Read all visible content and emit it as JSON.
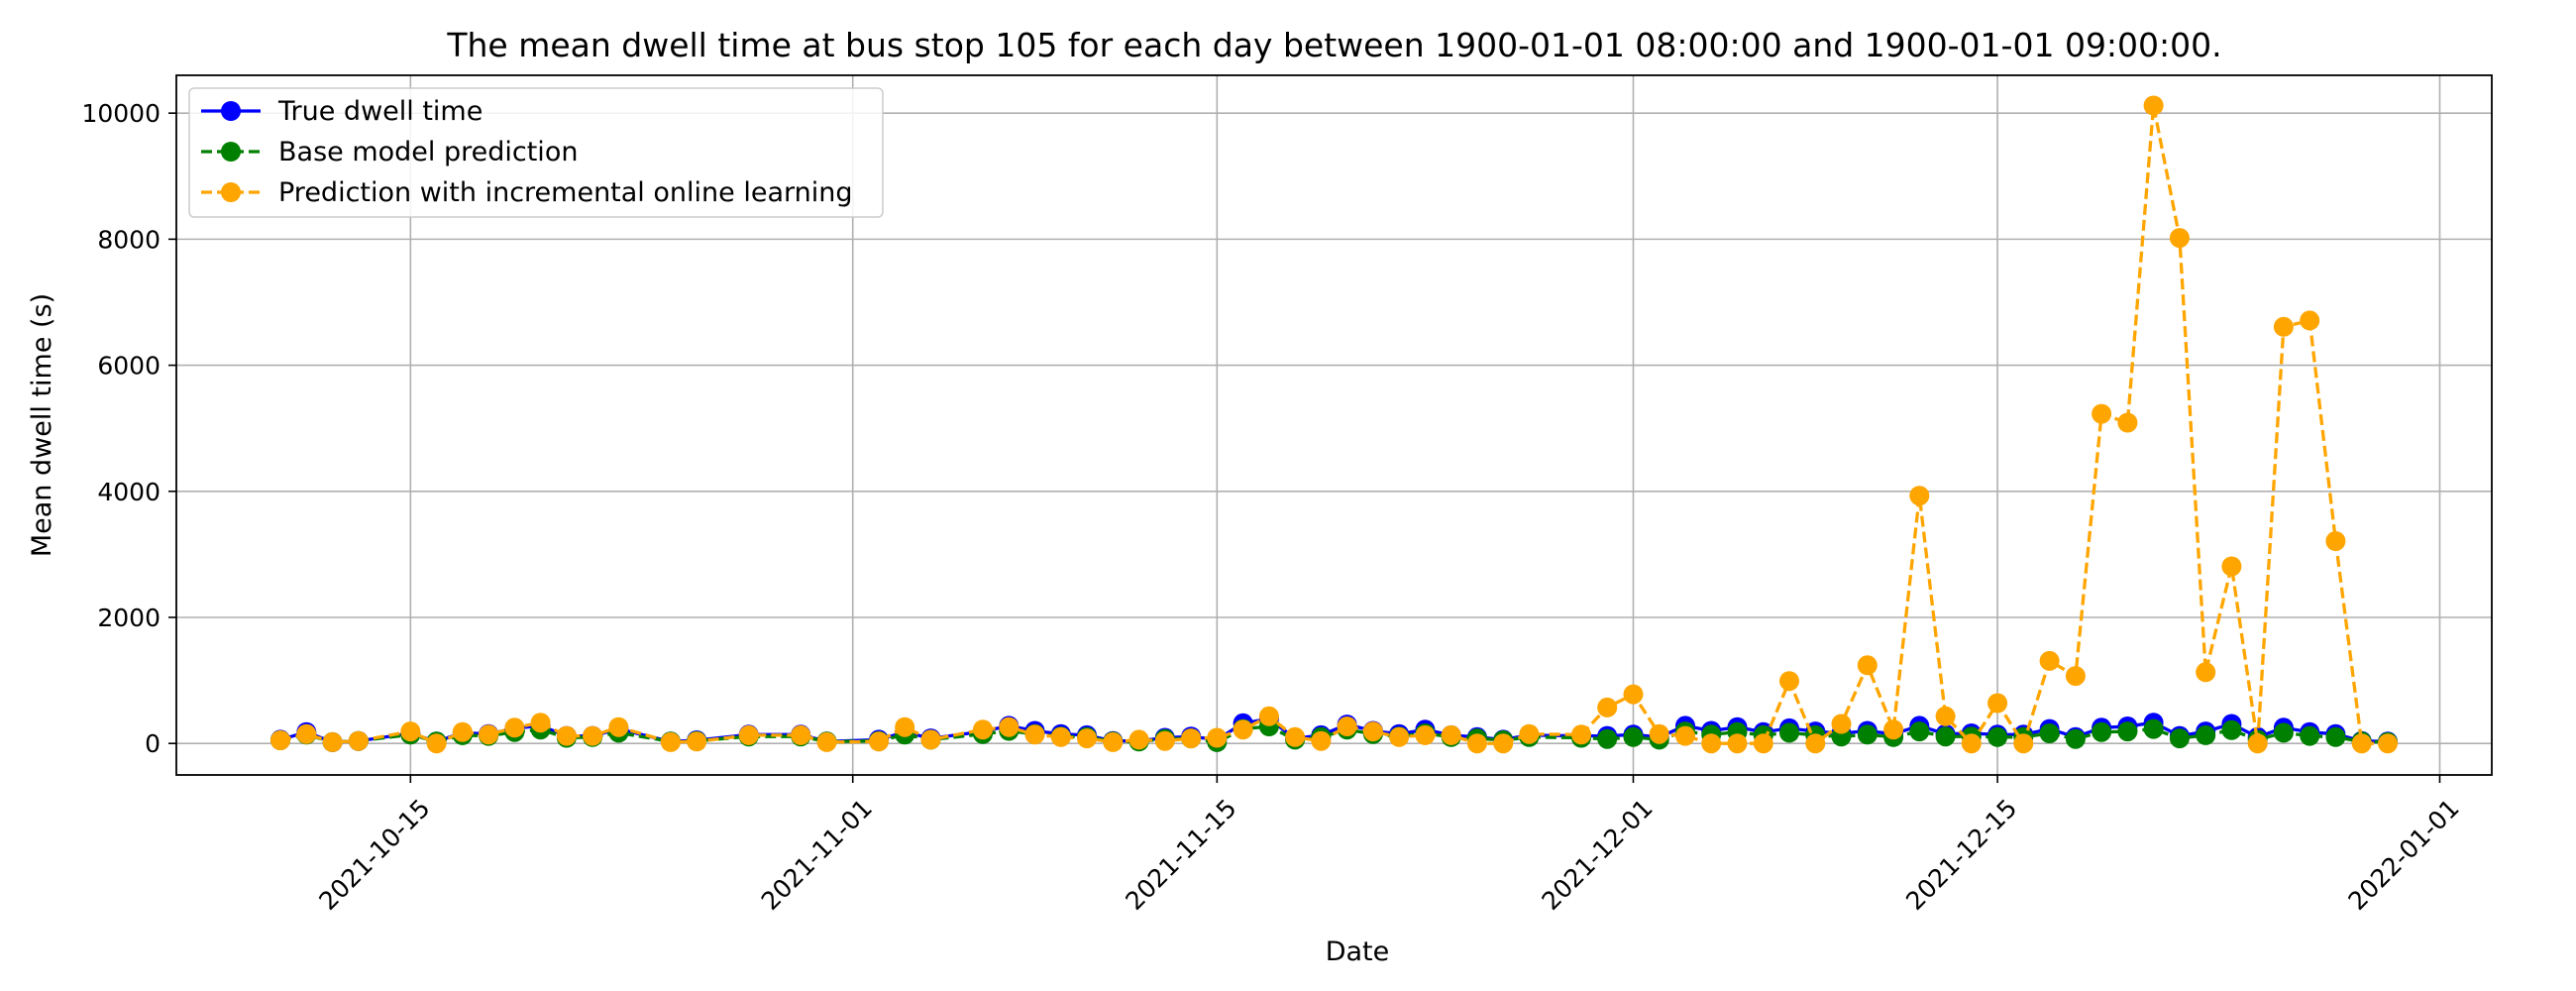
{
  "chart_data": {
    "type": "line",
    "title": "The mean dwell time at bus stop 105 for each day between 1900-01-01 08:00:00 and 1900-01-01 09:00:00.",
    "xlabel": "Date",
    "ylabel": "Mean dwell time (s)",
    "x_ticks": [
      "2021-10-15",
      "2021-11-01",
      "2021-11-15",
      "2021-12-01",
      "2021-12-15",
      "2022-01-01"
    ],
    "y_ticks": [
      0,
      2000,
      4000,
      6000,
      8000,
      10000
    ],
    "xlim": [
      "2021-10-06",
      "2022-01-03"
    ],
    "ylim": [
      -500,
      10600
    ],
    "grid": true,
    "legend_position": "upper-left",
    "series": [
      {
        "name": "True dwell time",
        "color": "#0000ff",
        "linestyle": "solid",
        "points": [
          [
            "2021-10-10",
            60
          ],
          [
            "2021-10-11",
            180
          ],
          [
            "2021-10-12",
            20
          ],
          [
            "2021-10-13",
            40
          ],
          [
            "2021-10-15",
            160
          ],
          [
            "2021-10-16",
            30
          ],
          [
            "2021-10-17",
            170
          ],
          [
            "2021-10-18",
            150
          ],
          [
            "2021-10-19",
            240
          ],
          [
            "2021-10-20",
            280
          ],
          [
            "2021-10-21",
            120
          ],
          [
            "2021-10-22",
            120
          ],
          [
            "2021-10-23",
            230
          ],
          [
            "2021-10-25",
            30
          ],
          [
            "2021-10-26",
            50
          ],
          [
            "2021-10-28",
            140
          ],
          [
            "2021-10-30",
            140
          ],
          [
            "2021-10-31",
            30
          ],
          [
            "2021-11-02",
            60
          ],
          [
            "2021-11-03",
            180
          ],
          [
            "2021-11-04",
            80
          ],
          [
            "2021-11-06",
            190
          ],
          [
            "2021-11-07",
            280
          ],
          [
            "2021-11-08",
            200
          ],
          [
            "2021-11-09",
            150
          ],
          [
            "2021-11-10",
            130
          ],
          [
            "2021-11-11",
            40
          ],
          [
            "2021-11-12",
            40
          ],
          [
            "2021-11-13",
            90
          ],
          [
            "2021-11-14",
            110
          ],
          [
            "2021-11-15",
            60
          ],
          [
            "2021-11-16",
            320
          ],
          [
            "2021-11-17",
            390
          ],
          [
            "2021-11-18",
            80
          ],
          [
            "2021-11-19",
            130
          ],
          [
            "2021-11-20",
            300
          ],
          [
            "2021-11-21",
            200
          ],
          [
            "2021-11-22",
            150
          ],
          [
            "2021-11-23",
            220
          ],
          [
            "2021-11-24",
            130
          ],
          [
            "2021-11-25",
            100
          ],
          [
            "2021-11-26",
            60
          ],
          [
            "2021-11-27",
            130
          ],
          [
            "2021-11-29",
            120
          ],
          [
            "2021-11-30",
            120
          ],
          [
            "2021-12-01",
            140
          ],
          [
            "2021-12-02",
            100
          ],
          [
            "2021-12-03",
            280
          ],
          [
            "2021-12-04",
            200
          ],
          [
            "2021-12-05",
            260
          ],
          [
            "2021-12-06",
            180
          ],
          [
            "2021-12-07",
            240
          ],
          [
            "2021-12-08",
            190
          ],
          [
            "2021-12-09",
            160
          ],
          [
            "2021-12-10",
            200
          ],
          [
            "2021-12-11",
            150
          ],
          [
            "2021-12-12",
            280
          ],
          [
            "2021-12-13",
            150
          ],
          [
            "2021-12-14",
            160
          ],
          [
            "2021-12-15",
            140
          ],
          [
            "2021-12-16",
            140
          ],
          [
            "2021-12-17",
            230
          ],
          [
            "2021-12-18",
            100
          ],
          [
            "2021-12-19",
            250
          ],
          [
            "2021-12-20",
            270
          ],
          [
            "2021-12-21",
            330
          ],
          [
            "2021-12-22",
            120
          ],
          [
            "2021-12-23",
            190
          ],
          [
            "2021-12-24",
            310
          ],
          [
            "2021-12-25",
            100
          ],
          [
            "2021-12-26",
            250
          ],
          [
            "2021-12-27",
            180
          ],
          [
            "2021-12-28",
            150
          ],
          [
            "2021-12-29",
            40
          ],
          [
            "2021-12-30",
            30
          ]
        ]
      },
      {
        "name": "Base model prediction",
        "color": "#008000",
        "linestyle": "dashed",
        "points": [
          [
            "2021-10-10",
            50
          ],
          [
            "2021-10-11",
            140
          ],
          [
            "2021-10-12",
            20
          ],
          [
            "2021-10-13",
            40
          ],
          [
            "2021-10-15",
            140
          ],
          [
            "2021-10-16",
            30
          ],
          [
            "2021-10-17",
            130
          ],
          [
            "2021-10-18",
            120
          ],
          [
            "2021-10-19",
            180
          ],
          [
            "2021-10-20",
            220
          ],
          [
            "2021-10-21",
            90
          ],
          [
            "2021-10-22",
            100
          ],
          [
            "2021-10-23",
            170
          ],
          [
            "2021-10-25",
            30
          ],
          [
            "2021-10-26",
            40
          ],
          [
            "2021-10-28",
            110
          ],
          [
            "2021-10-30",
            110
          ],
          [
            "2021-10-31",
            30
          ],
          [
            "2021-11-02",
            40
          ],
          [
            "2021-11-03",
            140
          ],
          [
            "2021-11-04",
            60
          ],
          [
            "2021-11-06",
            150
          ],
          [
            "2021-11-07",
            200
          ],
          [
            "2021-11-08",
            150
          ],
          [
            "2021-11-09",
            110
          ],
          [
            "2021-11-10",
            100
          ],
          [
            "2021-11-11",
            30
          ],
          [
            "2021-11-12",
            30
          ],
          [
            "2021-11-13",
            70
          ],
          [
            "2021-11-14",
            80
          ],
          [
            "2021-11-15",
            20
          ],
          [
            "2021-11-16",
            230
          ],
          [
            "2021-11-17",
            270
          ],
          [
            "2021-11-18",
            60
          ],
          [
            "2021-11-19",
            100
          ],
          [
            "2021-11-20",
            220
          ],
          [
            "2021-11-21",
            150
          ],
          [
            "2021-11-22",
            110
          ],
          [
            "2021-11-23",
            160
          ],
          [
            "2021-11-24",
            100
          ],
          [
            "2021-11-25",
            80
          ],
          [
            "2021-11-26",
            50
          ],
          [
            "2021-11-27",
            100
          ],
          [
            "2021-11-29",
            90
          ],
          [
            "2021-11-30",
            70
          ],
          [
            "2021-12-01",
            100
          ],
          [
            "2021-12-02",
            60
          ],
          [
            "2021-12-03",
            190
          ],
          [
            "2021-12-04",
            140
          ],
          [
            "2021-12-05",
            180
          ],
          [
            "2021-12-06",
            130
          ],
          [
            "2021-12-07",
            170
          ],
          [
            "2021-12-08",
            130
          ],
          [
            "2021-12-09",
            110
          ],
          [
            "2021-12-10",
            140
          ],
          [
            "2021-12-11",
            100
          ],
          [
            "2021-12-12",
            190
          ],
          [
            "2021-12-13",
            110
          ],
          [
            "2021-12-14",
            110
          ],
          [
            "2021-12-15",
            100
          ],
          [
            "2021-12-16",
            100
          ],
          [
            "2021-12-17",
            160
          ],
          [
            "2021-12-18",
            70
          ],
          [
            "2021-12-19",
            180
          ],
          [
            "2021-12-20",
            190
          ],
          [
            "2021-12-21",
            230
          ],
          [
            "2021-12-22",
            80
          ],
          [
            "2021-12-23",
            130
          ],
          [
            "2021-12-24",
            210
          ],
          [
            "2021-12-25",
            60
          ],
          [
            "2021-12-26",
            170
          ],
          [
            "2021-12-27",
            120
          ],
          [
            "2021-12-28",
            100
          ],
          [
            "2021-12-29",
            30
          ],
          [
            "2021-12-30",
            20
          ]
        ]
      },
      {
        "name": "Prediction with incremental online learning",
        "color": "#ffa500",
        "linestyle": "dashed",
        "points": [
          [
            "2021-10-10",
            50
          ],
          [
            "2021-10-11",
            150
          ],
          [
            "2021-10-12",
            20
          ],
          [
            "2021-10-13",
            40
          ],
          [
            "2021-10-15",
            190
          ],
          [
            "2021-10-16",
            0
          ],
          [
            "2021-10-17",
            180
          ],
          [
            "2021-10-18",
            140
          ],
          [
            "2021-10-19",
            250
          ],
          [
            "2021-10-20",
            330
          ],
          [
            "2021-10-21",
            120
          ],
          [
            "2021-10-22",
            120
          ],
          [
            "2021-10-23",
            260
          ],
          [
            "2021-10-25",
            20
          ],
          [
            "2021-10-26",
            30
          ],
          [
            "2021-10-28",
            130
          ],
          [
            "2021-10-30",
            130
          ],
          [
            "2021-10-31",
            20
          ],
          [
            "2021-11-02",
            30
          ],
          [
            "2021-11-03",
            260
          ],
          [
            "2021-11-04",
            60
          ],
          [
            "2021-11-06",
            220
          ],
          [
            "2021-11-07",
            260
          ],
          [
            "2021-11-08",
            140
          ],
          [
            "2021-11-09",
            100
          ],
          [
            "2021-11-10",
            80
          ],
          [
            "2021-11-11",
            20
          ],
          [
            "2021-11-12",
            60
          ],
          [
            "2021-11-13",
            40
          ],
          [
            "2021-11-14",
            80
          ],
          [
            "2021-11-15",
            90
          ],
          [
            "2021-11-16",
            220
          ],
          [
            "2021-11-17",
            430
          ],
          [
            "2021-11-18",
            100
          ],
          [
            "2021-11-19",
            40
          ],
          [
            "2021-11-20",
            270
          ],
          [
            "2021-11-21",
            190
          ],
          [
            "2021-11-22",
            100
          ],
          [
            "2021-11-23",
            130
          ],
          [
            "2021-11-24",
            130
          ],
          [
            "2021-11-25",
            0
          ],
          [
            "2021-11-26",
            0
          ],
          [
            "2021-11-27",
            150
          ],
          [
            "2021-11-29",
            140
          ],
          [
            "2021-11-30",
            570
          ],
          [
            "2021-12-01",
            780
          ],
          [
            "2021-12-02",
            150
          ],
          [
            "2021-12-03",
            120
          ],
          [
            "2021-12-04",
            0
          ],
          [
            "2021-12-05",
            0
          ],
          [
            "2021-12-06",
            0
          ],
          [
            "2021-12-07",
            990
          ],
          [
            "2021-12-08",
            0
          ],
          [
            "2021-12-09",
            310
          ],
          [
            "2021-12-10",
            1240
          ],
          [
            "2021-12-11",
            220
          ],
          [
            "2021-12-12",
            3930
          ],
          [
            "2021-12-13",
            430
          ],
          [
            "2021-12-14",
            0
          ],
          [
            "2021-12-15",
            640
          ],
          [
            "2021-12-16",
            0
          ],
          [
            "2021-12-17",
            1310
          ],
          [
            "2021-12-18",
            1070
          ],
          [
            "2021-12-19",
            5230
          ],
          [
            "2021-12-20",
            5090
          ],
          [
            "2021-12-21",
            10120
          ],
          [
            "2021-12-22",
            8020
          ],
          [
            "2021-12-23",
            1130
          ],
          [
            "2021-12-24",
            2810
          ],
          [
            "2021-12-25",
            0
          ],
          [
            "2021-12-26",
            6610
          ],
          [
            "2021-12-27",
            6710
          ],
          [
            "2021-12-28",
            3210
          ],
          [
            "2021-12-29",
            0
          ],
          [
            "2021-12-30",
            0
          ]
        ]
      }
    ]
  }
}
